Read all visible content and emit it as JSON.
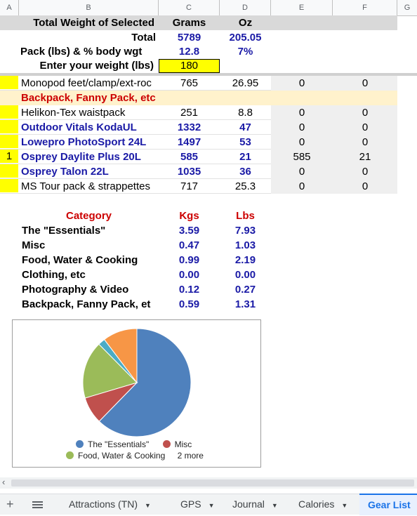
{
  "columns": [
    "A",
    "B",
    "C",
    "D",
    "E",
    "F",
    "G"
  ],
  "summary": {
    "header": {
      "label": "Total Weight of Selected",
      "grams": "Grams",
      "oz": "Oz"
    },
    "total": {
      "label": "Total",
      "grams": "5789",
      "oz": "205.05"
    },
    "pack": {
      "label": "Pack (lbs)  & % body wgt",
      "lbs": "12.8",
      "pct": "7%"
    },
    "weight": {
      "label": "Enter your weight (lbs)",
      "value": "180"
    }
  },
  "rows": [
    {
      "a": "",
      "name": "Monopod feet/clamp/ext-roc",
      "grams": "765",
      "oz": "26.95",
      "e": "0",
      "f": "0",
      "bold": false
    },
    {
      "section": "Backpack, Fanny Pack, etc"
    },
    {
      "a": "",
      "name": "Helikon-Tex waistpack",
      "grams": "251",
      "oz": "8.8",
      "e": "0",
      "f": "0",
      "bold": false
    },
    {
      "a": "",
      "name": "Outdoor Vitals KodaUL",
      "grams": "1332",
      "oz": "47",
      "e": "0",
      "f": "0",
      "bold": true
    },
    {
      "a": "",
      "name": "Lowepro PhotoSport 24L",
      "grams": "1497",
      "oz": "53",
      "e": "0",
      "f": "0",
      "bold": true
    },
    {
      "a": "1",
      "name": "Osprey Daylite Plus 20L",
      "grams": "585",
      "oz": "21",
      "e": "585",
      "f": "21",
      "bold": true
    },
    {
      "a": "",
      "name": "Osprey Talon 22L",
      "grams": "1035",
      "oz": "36",
      "e": "0",
      "f": "0",
      "bold": true
    },
    {
      "a": "",
      "name": "MS Tour pack & strappettes",
      "grams": "717",
      "oz": "25.3",
      "e": "0",
      "f": "0",
      "bold": false
    }
  ],
  "categories": {
    "header": {
      "label": "Category",
      "kgs": "Kgs",
      "lbs": "Lbs"
    },
    "items": [
      {
        "label": "The \"Essentials\"",
        "kgs": "3.59",
        "lbs": "7.93"
      },
      {
        "label": "Misc",
        "kgs": "0.47",
        "lbs": "1.03"
      },
      {
        "label": "Food, Water & Cooking",
        "kgs": "0.99",
        "lbs": "2.19"
      },
      {
        "label": "Clothing, etc",
        "kgs": "0.00",
        "lbs": "0.00"
      },
      {
        "label": "Photography & Video",
        "kgs": "0.12",
        "lbs": "0.27"
      },
      {
        "label": "Backpack, Fanny Pack, et",
        "kgs": "0.59",
        "lbs": "1.31"
      }
    ]
  },
  "chart_data": {
    "type": "pie",
    "slices": [
      {
        "name": "The \"Essentials\"",
        "value": 7.93,
        "color": "#4f81bd"
      },
      {
        "name": "Misc",
        "value": 1.03,
        "color": "#c0504d"
      },
      {
        "name": "Food, Water & Cooking",
        "value": 2.19,
        "color": "#9bbb59"
      },
      {
        "name": "Clothing, etc",
        "value": 0.0,
        "color": "#8064a2"
      },
      {
        "name": "Photography & Video",
        "value": 0.27,
        "color": "#4bacc6"
      },
      {
        "name": "Backpack, Fanny Pack, et",
        "value": 1.31,
        "color": "#f79646"
      }
    ],
    "legend": [
      "The \"Essentials\"",
      "Misc",
      "Food, Water & Cooking"
    ],
    "legend_more": "2 more"
  },
  "tabs": [
    {
      "label": "Attractions (TN)",
      "active": false
    },
    {
      "label": "GPS",
      "active": false
    },
    {
      "label": "Journal",
      "active": false
    },
    {
      "label": "Calories",
      "active": false
    },
    {
      "label": "Gear List",
      "active": true
    }
  ],
  "icons": {
    "add": "plus-icon",
    "menu": "hamburger-icon",
    "scroll_left": "chevron-left-icon"
  }
}
